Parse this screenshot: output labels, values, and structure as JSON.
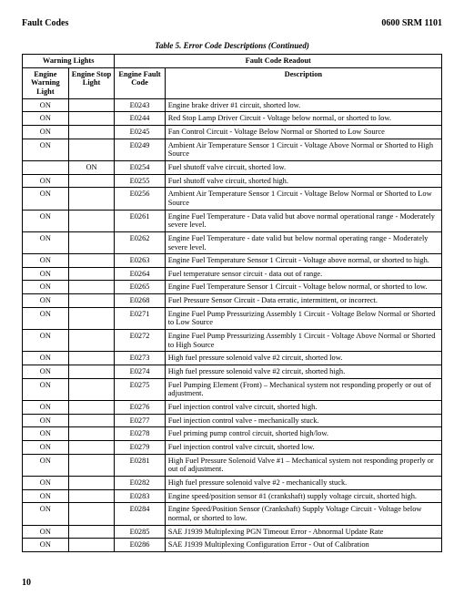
{
  "header": {
    "left": "Fault Codes",
    "right": "0600 SRM 1101"
  },
  "caption": "Table 5. Error Code Descriptions (Continued)",
  "thead": {
    "group_left": "Warning Lights",
    "group_right": "Fault Code Readout",
    "c1": "Engine Warning Light",
    "c2": "Engine Stop Light",
    "c3": "Engine Fault Code",
    "c4": "Description"
  },
  "rows": [
    {
      "wl": "ON",
      "sl": "",
      "code": "E0243",
      "desc": "Engine brake driver #1 circuit, shorted low."
    },
    {
      "wl": "ON",
      "sl": "",
      "code": "E0244",
      "desc": "Red Stop Lamp Driver Circuit - Voltage below normal, or shorted to low."
    },
    {
      "wl": "ON",
      "sl": "",
      "code": "E0245",
      "desc": "Fan Control Circuit - Voltage Below Normal or Shorted to Low Source"
    },
    {
      "wl": "ON",
      "sl": "",
      "code": "E0249",
      "desc": "Ambient Air Temperature Sensor 1 Circuit - Voltage Above Normal or Shorted to High Source"
    },
    {
      "wl": "",
      "sl": "ON",
      "code": "E0254",
      "desc": "Fuel shutoff valve circuit, shorted low."
    },
    {
      "wl": "ON",
      "sl": "",
      "code": "E0255",
      "desc": "Fuel shutoff valve circuit, shorted high."
    },
    {
      "wl": "ON",
      "sl": "",
      "code": "E0256",
      "desc": "Ambient Air Temperature Sensor 1 Circuit - Voltage Below Normal or Shorted to Low Source"
    },
    {
      "wl": "ON",
      "sl": "",
      "code": "E0261",
      "desc": "Engine Fuel Temperature - Data valid but above normal operational range - Moderately severe level."
    },
    {
      "wl": "ON",
      "sl": "",
      "code": "E0262",
      "desc": "Engine Fuel Temperature - date valid but below normal operating range - Moderately severe level."
    },
    {
      "wl": "ON",
      "sl": "",
      "code": "E0263",
      "desc": "Engine Fuel Temperature Sensor 1 Circuit - Voltage above normal, or shorted to high."
    },
    {
      "wl": "ON",
      "sl": "",
      "code": "E0264",
      "desc": "Fuel temperature sensor circuit - data out of range."
    },
    {
      "wl": "ON",
      "sl": "",
      "code": "E0265",
      "desc": "Engine Fuel Temperature Sensor 1 Circuit - Voltage below normal, or shorted to low."
    },
    {
      "wl": "ON",
      "sl": "",
      "code": "E0268",
      "desc": "Fuel Pressure Sensor Circuit - Data erratic, intermittent, or incorrect."
    },
    {
      "wl": "ON",
      "sl": "",
      "code": "E0271",
      "desc": "Engine Fuel Pump Pressurizing Assembly 1 Circuit - Voltage Below Normal or Shorted to Low Source"
    },
    {
      "wl": "ON",
      "sl": "",
      "code": "E0272",
      "desc": "Engine Fuel Pump Pressurizing Assembly 1 Circuit - Voltage Above Normal or Shorted to High Source"
    },
    {
      "wl": "ON",
      "sl": "",
      "code": "E0273",
      "desc": "High fuel pressure solenoid valve #2 circuit, shorted low."
    },
    {
      "wl": "ON",
      "sl": "",
      "code": "E0274",
      "desc": "High fuel pressure solenoid valve #2 circuit, shorted high."
    },
    {
      "wl": "ON",
      "sl": "",
      "code": "E0275",
      "desc": "Fuel Pumping Element (Front) – Mechanical system not responding properly or out of adjustment."
    },
    {
      "wl": "ON",
      "sl": "",
      "code": "E0276",
      "desc": "Fuel injection control valve circuit, shorted high."
    },
    {
      "wl": "ON",
      "sl": "",
      "code": "E0277",
      "desc": "Fuel injection control valve - mechanically stuck."
    },
    {
      "wl": "ON",
      "sl": "",
      "code": "E0278",
      "desc": "Fuel priming pump control circuit, shorted high/low."
    },
    {
      "wl": "ON",
      "sl": "",
      "code": "E0279",
      "desc": "Fuel injection control valve circuit, shorted low."
    },
    {
      "wl": "ON",
      "sl": "",
      "code": "E0281",
      "desc": "High Fuel Pressure Solenoid Valve #1 – Mechanical system not responding properly or out of adjustment."
    },
    {
      "wl": "ON",
      "sl": "",
      "code": "E0282",
      "desc": "High fuel pressure solenoid valve #2 - mechanically stuck."
    },
    {
      "wl": "ON",
      "sl": "",
      "code": "E0283",
      "desc": "Engine speed/position sensor #1 (crankshaft) supply voltage circuit, shorted high."
    },
    {
      "wl": "ON",
      "sl": "",
      "code": "E0284",
      "desc": "Engine Speed/Position Sensor (Crankshaft) Supply Voltage Circuit - Voltage below normal, or shorted to low."
    },
    {
      "wl": "ON",
      "sl": "",
      "code": "E0285",
      "desc": "SAE J1939 Multiplexing PGN Timeout Error - Abnormal Update Rate"
    },
    {
      "wl": "ON",
      "sl": "",
      "code": "E0286",
      "desc": "SAE J1939 Multiplexing Configuration Error - Out of Calibration"
    }
  ],
  "page_number": "10"
}
